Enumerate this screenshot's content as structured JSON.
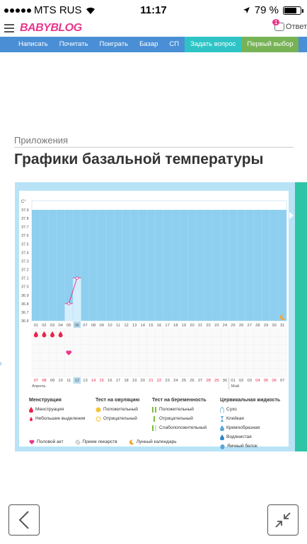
{
  "status": {
    "carrier": "MTS RUS",
    "time": "11:17",
    "battery": "79 %",
    "battery_level": 0.79
  },
  "header": {
    "logo": "BABYBLOG",
    "ask_label": "Ответ",
    "badge_count": "1"
  },
  "nav": {
    "items": [
      "Написать",
      "Почитать",
      "Поиграть",
      "Базар",
      "СП"
    ],
    "ask": "Задать вопрос",
    "first": "Первый выбор"
  },
  "page": {
    "section": "Приложения",
    "title": "Графики базальной температуры"
  },
  "chart_data": {
    "type": "line",
    "ylabel": "C°",
    "yticks": [
      "37.9",
      "37.8",
      "37.7",
      "37.6",
      "37.5",
      "37.4",
      "37.3",
      "37.2",
      "37.1",
      "37.0",
      "36.9",
      "36.8",
      "36.7",
      "36.6"
    ],
    "ylim": [
      36.6,
      37.9
    ],
    "days": [
      "01",
      "02",
      "03",
      "04",
      "05",
      "06",
      "07",
      "08",
      "09",
      "10",
      "11",
      "12",
      "13",
      "14",
      "15",
      "16",
      "17",
      "18",
      "19",
      "20",
      "21",
      "22",
      "23",
      "24",
      "25",
      "26",
      "27",
      "28",
      "29",
      "30",
      "31"
    ],
    "dates": [
      "07",
      "08",
      "09",
      "10",
      "11",
      "12",
      "13",
      "14",
      "15",
      "16",
      "17",
      "18",
      "19",
      "20",
      "21",
      "22",
      "23",
      "24",
      "25",
      "26",
      "27",
      "28",
      "29",
      "30",
      "01",
      "02",
      "03",
      "04",
      "05",
      "06",
      "07"
    ],
    "red_dates": [
      0,
      1,
      7,
      8,
      14,
      15,
      21,
      22,
      27,
      28,
      29
    ],
    "highlight_day_index": 5,
    "series": [
      {
        "points": [
          {
            "day": "05",
            "value": 36.8
          },
          {
            "day": "06",
            "value": 37.1
          }
        ]
      }
    ],
    "months": [
      "Апрель",
      "Май"
    ],
    "menstruation_days": [
      "01",
      "02",
      "03",
      "04"
    ],
    "intercourse_day": "05",
    "moon_day": "31"
  },
  "legend": {
    "menstruation": {
      "title": "Менструация",
      "items": [
        "Менструация",
        "Небольшие выделения"
      ]
    },
    "ovulation": {
      "title": "Тест на овуляцию",
      "items": [
        "Положительный",
        "Отрицательный"
      ]
    },
    "pregnancy": {
      "title": "Тест на беременность",
      "items": [
        "Положительный",
        "Отрицательный",
        "Слабоположительный"
      ]
    },
    "cervical": {
      "title": "Цервикальная жидкость",
      "items": [
        "Сухо",
        "Клейкая",
        "Кремообразная",
        "Водянистая",
        "Яичный белок"
      ]
    },
    "bottom": [
      "Половой акт",
      "Прием лекарств",
      "Лунный календарь"
    ]
  },
  "colors": {
    "accent": "#e8378c",
    "nav": "#4a8fd6",
    "teal": "#2ec4c6",
    "green": "#77b356",
    "chart_fill": "#8ecff0"
  }
}
